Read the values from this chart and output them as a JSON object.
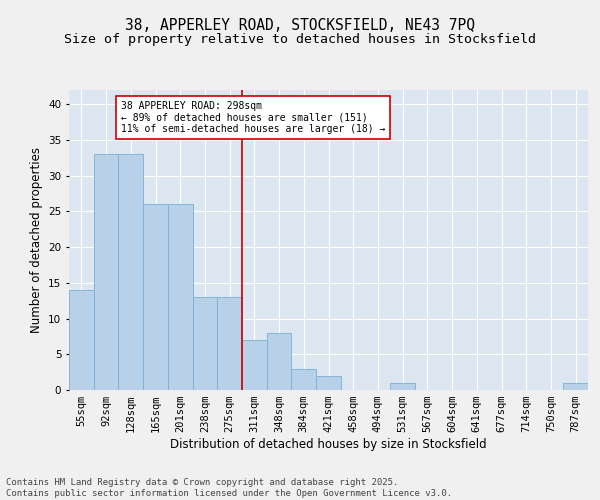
{
  "title_line1": "38, APPERLEY ROAD, STOCKSFIELD, NE43 7PQ",
  "title_line2": "Size of property relative to detached houses in Stocksfield",
  "xlabel": "Distribution of detached houses by size in Stocksfield",
  "ylabel": "Number of detached properties",
  "categories": [
    "55sqm",
    "92sqm",
    "128sqm",
    "165sqm",
    "201sqm",
    "238sqm",
    "275sqm",
    "311sqm",
    "348sqm",
    "384sqm",
    "421sqm",
    "458sqm",
    "494sqm",
    "531sqm",
    "567sqm",
    "604sqm",
    "641sqm",
    "677sqm",
    "714sqm",
    "750sqm",
    "787sqm"
  ],
  "values": [
    14,
    33,
    33,
    26,
    26,
    13,
    13,
    7,
    8,
    3,
    2,
    0,
    0,
    1,
    0,
    0,
    0,
    0,
    0,
    0,
    1
  ],
  "bar_color": "#b8d0e8",
  "bar_edgecolor": "#7aafd4",
  "background_color": "#dce6f0",
  "grid_color": "#ffffff",
  "vline_color": "#cc0000",
  "annotation_text": "38 APPERLEY ROAD: 298sqm\n← 89% of detached houses are smaller (151)\n11% of semi-detached houses are larger (18) →",
  "annotation_box_color": "#cc0000",
  "ylim": [
    0,
    42
  ],
  "yticks": [
    0,
    5,
    10,
    15,
    20,
    25,
    30,
    35,
    40
  ],
  "fig_background": "#f0f0f0",
  "title_fontsize": 10.5,
  "subtitle_fontsize": 9.5,
  "axis_label_fontsize": 8.5,
  "tick_fontsize": 7.5,
  "annotation_fontsize": 7,
  "footer_fontsize": 6.5
}
